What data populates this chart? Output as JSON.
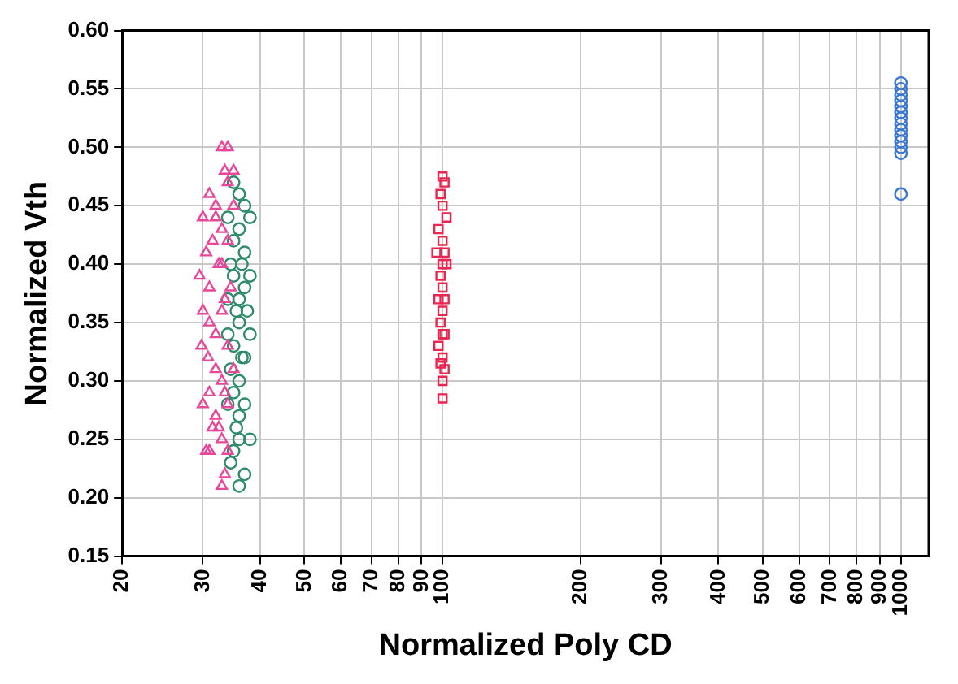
{
  "chart_data": {
    "type": "scatter",
    "xlabel": "Normalized Poly CD",
    "ylabel": "Normalized Vth",
    "log": "x",
    "grid": true,
    "legend": false,
    "xlim": [
      20,
      1150
    ],
    "xticks": [
      20,
      30,
      40,
      50,
      60,
      70,
      80,
      90,
      100,
      200,
      300,
      400,
      500,
      600,
      700,
      800,
      900,
      1000
    ],
    "ylim": [
      0.15,
      0.6
    ],
    "yticks": [
      {
        "value": 0.15,
        "label": "0.15"
      },
      {
        "value": 0.2,
        "label": "0.20"
      },
      {
        "value": 0.25,
        "label": "0.25"
      },
      {
        "value": 0.3,
        "label": "0.30"
      },
      {
        "value": 0.35,
        "label": "0.35"
      },
      {
        "value": 0.4,
        "label": "0.40"
      },
      {
        "value": 0.45,
        "label": "0.45"
      },
      {
        "value": 0.5,
        "label": "0.50"
      },
      {
        "value": 0.55,
        "label": "0.55"
      },
      {
        "value": 0.6,
        "label": "0.60"
      }
    ],
    "series": [
      {
        "color": "#e8479a",
        "marker": "triangle",
        "x": [
          33,
          34,
          33.5,
          35,
          31,
          32,
          30,
          34,
          33,
          31.5,
          30.5,
          32,
          33,
          34,
          35,
          29.5,
          31,
          32.5,
          33.5,
          30,
          34.5,
          31,
          32,
          33,
          29.8,
          30.8,
          32,
          34,
          33,
          31,
          35,
          30,
          32,
          33.5,
          31.5,
          34,
          33,
          32.5,
          31,
          30.5,
          34,
          33.5,
          33
        ],
        "values": [
          0.5,
          0.5,
          0.48,
          0.48,
          0.46,
          0.45,
          0.44,
          0.47,
          0.43,
          0.42,
          0.41,
          0.44,
          0.4,
          0.42,
          0.45,
          0.39,
          0.38,
          0.4,
          0.37,
          0.36,
          0.38,
          0.35,
          0.34,
          0.36,
          0.33,
          0.32,
          0.31,
          0.33,
          0.3,
          0.29,
          0.31,
          0.28,
          0.27,
          0.29,
          0.26,
          0.28,
          0.25,
          0.26,
          0.24,
          0.24,
          0.24,
          0.22,
          0.21
        ]
      },
      {
        "color": "#2e8b6b",
        "marker": "circle",
        "x": [
          35,
          36,
          37,
          34,
          38,
          36,
          35,
          37,
          34.5,
          36.5,
          38,
          35,
          37,
          36,
          34,
          35.5,
          37.5,
          36,
          34,
          38,
          35,
          36.5,
          37,
          34.5,
          36,
          35,
          37,
          34,
          36,
          38,
          35.5,
          36,
          35,
          34.5,
          37,
          36
        ],
        "values": [
          0.47,
          0.46,
          0.45,
          0.44,
          0.44,
          0.43,
          0.42,
          0.41,
          0.4,
          0.4,
          0.39,
          0.39,
          0.38,
          0.37,
          0.37,
          0.36,
          0.36,
          0.35,
          0.34,
          0.34,
          0.33,
          0.32,
          0.32,
          0.31,
          0.3,
          0.29,
          0.28,
          0.28,
          0.27,
          0.25,
          0.26,
          0.25,
          0.24,
          0.23,
          0.22,
          0.21
        ]
      },
      {
        "color": "#e8264f",
        "marker": "square",
        "x": [
          100,
          101,
          99,
          100,
          102,
          98,
          100,
          101,
          97,
          100,
          99,
          102,
          100,
          98,
          101,
          100,
          99,
          100,
          101,
          98,
          100,
          99,
          101,
          100,
          100
        ],
        "values": [
          0.475,
          0.47,
          0.46,
          0.45,
          0.44,
          0.43,
          0.42,
          0.41,
          0.41,
          0.4,
          0.39,
          0.4,
          0.38,
          0.37,
          0.37,
          0.36,
          0.35,
          0.34,
          0.34,
          0.33,
          0.32,
          0.315,
          0.31,
          0.3,
          0.285
        ]
      },
      {
        "color": "#3a78d0",
        "marker": "circle",
        "x": [
          1000,
          1000,
          1000,
          1000,
          1000,
          1000,
          1000,
          1000,
          1000,
          1000,
          1000,
          1000,
          1000,
          1000
        ],
        "values": [
          0.555,
          0.55,
          0.545,
          0.54,
          0.535,
          0.53,
          0.525,
          0.52,
          0.515,
          0.51,
          0.505,
          0.5,
          0.495,
          0.46
        ]
      }
    ]
  }
}
